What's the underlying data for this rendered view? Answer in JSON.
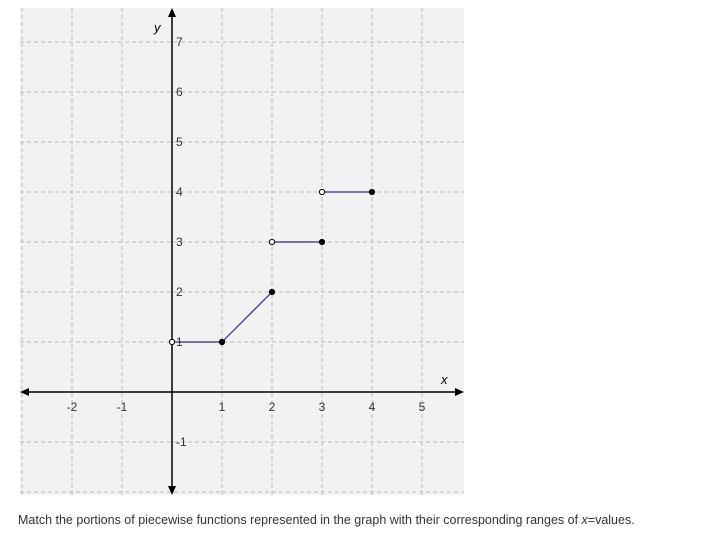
{
  "chart_data": {
    "type": "line",
    "xlabel": "x",
    "ylabel": "y",
    "xlim": [
      -3,
      5.8
    ],
    "ylim": [
      -2,
      7.6
    ],
    "grid": true,
    "x_ticks": [
      "-2",
      "-1",
      "1",
      "2",
      "3",
      "4",
      "5"
    ],
    "x_tick_values": [
      -2,
      -1,
      1,
      2,
      3,
      4,
      5
    ],
    "y_ticks": [
      "7",
      "6",
      "5",
      "4",
      "3",
      "2",
      "1",
      "-1"
    ],
    "y_tick_values": [
      7,
      6,
      5,
      4,
      3,
      2,
      1,
      -1
    ],
    "segments": [
      {
        "x": [
          0,
          1
        ],
        "y": [
          1,
          1
        ],
        "start_closed": false,
        "end_closed": true
      },
      {
        "x": [
          1,
          2
        ],
        "y": [
          1,
          2
        ],
        "start_closed": true,
        "end_closed": true
      },
      {
        "x": [
          2,
          3
        ],
        "y": [
          3,
          3
        ],
        "start_closed": false,
        "end_closed": true
      },
      {
        "x": [
          3,
          4
        ],
        "y": [
          4,
          4
        ],
        "start_closed": false,
        "end_closed": true
      }
    ],
    "colors": {
      "line": "#2b2b80",
      "grid": "#bbbbbb",
      "background": "#f2f2f2",
      "axis": "#000000"
    }
  },
  "instruction": {
    "prefix": "Match the portions of piecewise functions represented in the graph with their corresponding ranges of ",
    "variable": "x",
    "suffix": "=values."
  }
}
